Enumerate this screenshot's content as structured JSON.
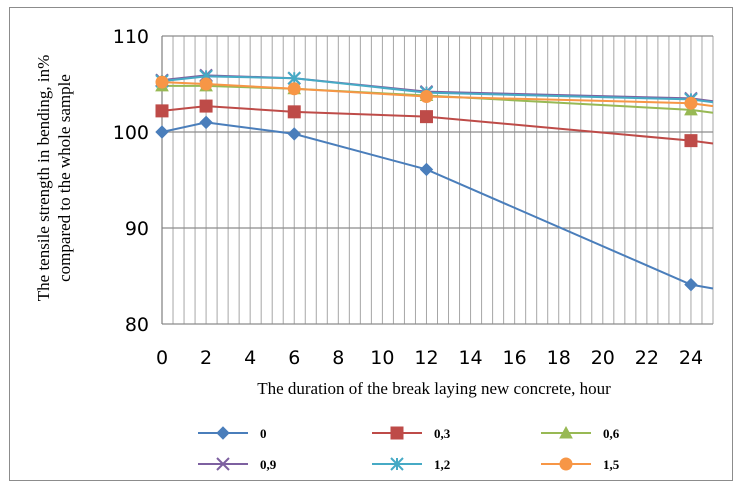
{
  "chart_data": {
    "type": "line",
    "title": "",
    "xlabel": "The duration of the break laying new concrete, hour",
    "ylabel_line1": "The tensile strength in bending, in%",
    "ylabel_line2": "compared to the whole sample",
    "x_ticks": [
      "0",
      "2",
      "4",
      "6",
      "8",
      "10",
      "12",
      "14",
      "16",
      "18",
      "20",
      "22",
      "24"
    ],
    "y_ticks": [
      "80",
      "90",
      "100",
      "110"
    ],
    "xlim": [
      0,
      25
    ],
    "ylim": [
      80,
      110
    ],
    "grid": "on",
    "legend_position": "bottom",
    "series": [
      {
        "name": "0",
        "color": "#4a7ebb",
        "marker": "diamond",
        "x": [
          0,
          2,
          6,
          12,
          24,
          25
        ],
        "y": [
          100,
          101,
          99.8,
          96.1,
          84.1,
          83.7
        ]
      },
      {
        "name": "0,3",
        "color": "#be4b48",
        "marker": "square",
        "x": [
          0,
          2,
          6,
          12,
          24,
          25
        ],
        "y": [
          102.2,
          102.7,
          102.1,
          101.6,
          99.1,
          98.8
        ]
      },
      {
        "name": "0,6",
        "color": "#98b954",
        "marker": "triangle",
        "x": [
          0,
          2,
          6,
          12,
          24,
          25
        ],
        "y": [
          104.8,
          104.8,
          104.5,
          103.8,
          102.3,
          102.0
        ]
      },
      {
        "name": "0,9",
        "color": "#7d60a0",
        "marker": "x",
        "x": [
          0,
          2,
          6,
          12,
          24,
          25
        ],
        "y": [
          105.4,
          105.9,
          105.6,
          104.2,
          103.5,
          103.2
        ]
      },
      {
        "name": "1,2",
        "color": "#46aac5",
        "marker": "star",
        "x": [
          0,
          2,
          6,
          12,
          24,
          25
        ],
        "y": [
          105.3,
          105.8,
          105.6,
          104.1,
          103.4,
          103.1
        ]
      },
      {
        "name": "1,5",
        "color": "#f79646",
        "marker": "circle",
        "x": [
          0,
          2,
          6,
          12,
          24,
          25
        ],
        "y": [
          105.2,
          105.0,
          104.5,
          103.7,
          103.0,
          102.7
        ]
      }
    ]
  }
}
